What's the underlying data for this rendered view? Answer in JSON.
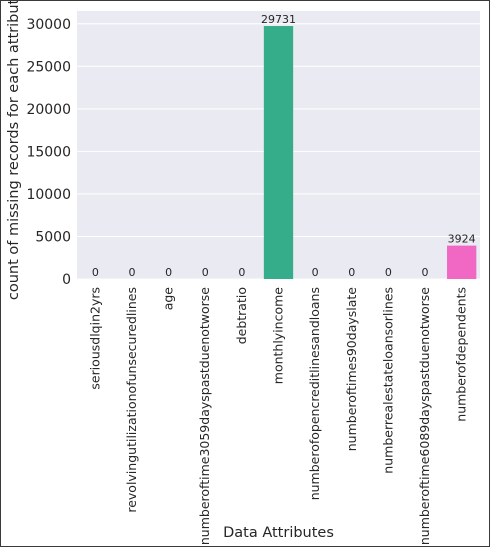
{
  "chart_data": {
    "type": "bar",
    "title": "",
    "xlabel": "Data Attributes",
    "ylabel": "count of missing records for each attribute",
    "ylim": [
      0,
      31500
    ],
    "yticks": [
      0,
      5000,
      10000,
      15000,
      20000,
      25000,
      30000
    ],
    "grid": true,
    "categories": [
      "seriousdlqin2yrs",
      "revolvingutilizationofunsecuredlines",
      "age",
      "numberoftime3059dayspastduenotworse",
      "debtratio",
      "monthlyincome",
      "numberofopencreditlinesandloans",
      "numberoftimes90dayslate",
      "numberrealestateloansorlines",
      "numberoftime6089dayspastduenotworse",
      "numberofdependents"
    ],
    "values": [
      0,
      0,
      0,
      0,
      0,
      29731,
      0,
      0,
      0,
      0,
      3924
    ],
    "colors": [
      "#f77189",
      "#e08c31",
      "#bb9832",
      "#a0a337",
      "#55ae33",
      "#35ad8a",
      "#38aaa5",
      "#39a6bf",
      "#3c9fe2",
      "#a48cf4",
      "#f067c4"
    ],
    "plot_background": "#eaeaf2",
    "grid_color": "#ffffff"
  }
}
